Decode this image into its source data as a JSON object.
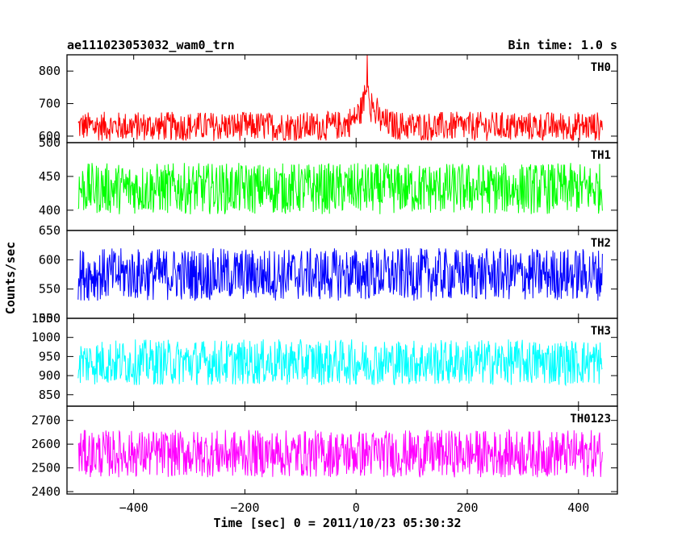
{
  "header": {
    "title": "ae111023053032_wam0_trn",
    "bin_time": "Bin time: 1.0 s"
  },
  "axes": {
    "xlabel": "Time [sec] 0 = 2011/10/23 05:30:32",
    "ylabel": "Counts/sec"
  },
  "chart_data": {
    "type": "line",
    "title": "ae111023053032_wam0_trn",
    "xlabel": "Time [sec] 0 = 2011/10/23 05:30:32",
    "ylabel": "Counts/sec",
    "xlim": [
      -520,
      470
    ],
    "x_range": [
      -500,
      443
    ],
    "x_ticks": [
      -400,
      -200,
      0,
      200,
      400
    ],
    "x_tick_labels": [
      "−400",
      "−200",
      "0",
      "200",
      "400"
    ],
    "bin_seconds": 1.0,
    "panels": [
      {
        "name": "TH0",
        "color": "#ff0000",
        "ylim": [
          580,
          850
        ],
        "y_ticks": [
          600,
          700,
          800
        ],
        "y_tick_labels": [
          "600",
          "700",
          "800"
        ],
        "baseline": 630,
        "noise_amplitude": 45,
        "peak": {
          "x": 20,
          "value": 850
        }
      },
      {
        "name": "TH1",
        "color": "#00ff00",
        "ylim": [
          370,
          500
        ],
        "y_ticks": [
          400,
          450,
          500
        ],
        "y_tick_labels": [
          "400",
          "450",
          "500"
        ],
        "baseline": 432,
        "noise_amplitude": 38
      },
      {
        "name": "TH2",
        "color": "#0000ff",
        "ylim": [
          500,
          650
        ],
        "y_ticks": [
          500,
          550,
          600,
          650
        ],
        "y_tick_labels": [
          "500",
          "550",
          "600",
          "650"
        ],
        "baseline": 575,
        "noise_amplitude": 45
      },
      {
        "name": "TH3",
        "color": "#00ffff",
        "ylim": [
          820,
          1050
        ],
        "y_ticks": [
          850,
          900,
          950,
          1000,
          1050
        ],
        "y_tick_labels": [
          "850",
          "900",
          "950",
          "1000",
          "1050"
        ],
        "baseline": 935,
        "noise_amplitude": 60
      },
      {
        "name": "TH0123",
        "color": "#ff00ff",
        "ylim": [
          2390,
          2760
        ],
        "y_ticks": [
          2400,
          2500,
          2600,
          2700
        ],
        "y_tick_labels": [
          "2400",
          "2500",
          "2600",
          "2700"
        ],
        "baseline": 2560,
        "noise_amplitude": 100
      }
    ]
  }
}
